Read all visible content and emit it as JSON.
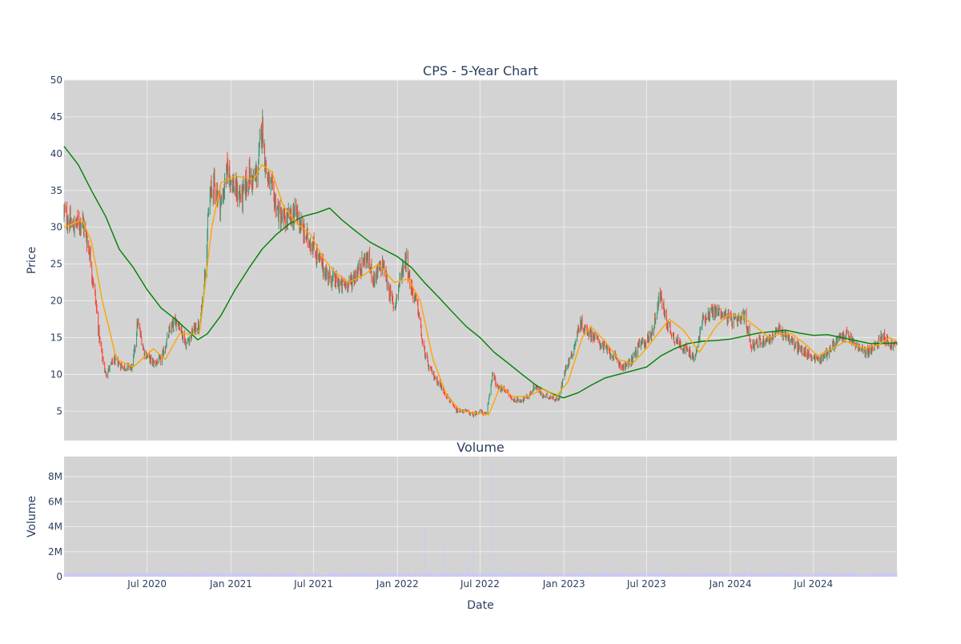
{
  "title": "CPS - 5-Year Chart",
  "volume_title": "Volume",
  "xlabel": "Date",
  "price_ylabel": "Price",
  "volume_ylabel": "Volume",
  "colors": {
    "plot_bg": "#d3d3d3",
    "grid": "#ececec",
    "up": "#3d9970",
    "down": "#ff4136",
    "ma_short": "#ffa500",
    "ma_long": "#008000",
    "volume": "#c8c8ff",
    "text": "#2a3f5f"
  },
  "chart_data": [
    {
      "type": "candlestick",
      "name": "price",
      "x_range": [
        "2020-01-01",
        "2024-12-31"
      ],
      "ylim": [
        1,
        50
      ],
      "y_ticks": [
        5,
        10,
        15,
        20,
        25,
        30,
        35,
        40,
        45,
        50
      ],
      "x_ticks": [
        "2020-07-01",
        "2021-01-01",
        "2021-07-01",
        "2022-01-01",
        "2022-07-01",
        "2023-01-01",
        "2023-07-01",
        "2024-01-01",
        "2024-07-01"
      ],
      "x_tick_labels": [
        "Jul 2020",
        "Jan 2021",
        "Jul 2021",
        "Jan 2022",
        "Jul 2022",
        "Jan 2023",
        "Jul 2023",
        "Jan 2024",
        "Jul 2024"
      ],
      "grid": true,
      "close_series": [
        [
          "2020-01-01",
          32
        ],
        [
          "2020-01-20",
          30
        ],
        [
          "2020-02-10",
          31
        ],
        [
          "2020-02-25",
          27
        ],
        [
          "2020-03-10",
          20
        ],
        [
          "2020-03-20",
          14
        ],
        [
          "2020-04-01",
          10
        ],
        [
          "2020-04-20",
          12
        ],
        [
          "2020-05-10",
          11
        ],
        [
          "2020-05-30",
          11
        ],
        [
          "2020-06-10",
          17
        ],
        [
          "2020-06-25",
          13
        ],
        [
          "2020-07-15",
          11.5
        ],
        [
          "2020-08-01",
          12
        ],
        [
          "2020-08-20",
          16
        ],
        [
          "2020-09-05",
          17.5
        ],
        [
          "2020-09-25",
          14
        ],
        [
          "2020-10-10",
          16
        ],
        [
          "2020-10-25",
          16.5
        ],
        [
          "2020-11-05",
          24
        ],
        [
          "2020-11-15",
          34
        ],
        [
          "2020-11-25",
          36
        ],
        [
          "2020-12-10",
          33
        ],
        [
          "2020-12-25",
          38
        ],
        [
          "2021-01-10",
          35
        ],
        [
          "2021-01-25",
          34
        ],
        [
          "2021-02-10",
          37
        ],
        [
          "2021-02-20",
          36
        ],
        [
          "2021-03-01",
          38
        ],
        [
          "2021-03-10",
          44
        ],
        [
          "2021-03-20",
          37
        ],
        [
          "2021-04-05",
          34
        ],
        [
          "2021-04-20",
          31
        ],
        [
          "2021-05-05",
          31
        ],
        [
          "2021-05-25",
          32
        ],
        [
          "2021-06-10",
          29
        ],
        [
          "2021-06-25",
          28
        ],
        [
          "2021-07-10",
          26
        ],
        [
          "2021-07-25",
          24
        ],
        [
          "2021-08-10",
          23
        ],
        [
          "2021-08-30",
          22
        ],
        [
          "2021-09-20",
          22.5
        ],
        [
          "2021-10-10",
          24.5
        ],
        [
          "2021-10-25",
          26
        ],
        [
          "2021-11-10",
          23
        ],
        [
          "2021-11-30",
          25
        ],
        [
          "2021-12-15",
          21
        ],
        [
          "2021-12-25",
          19
        ],
        [
          "2022-01-10",
          24
        ],
        [
          "2022-01-20",
          26
        ],
        [
          "2022-01-30",
          22
        ],
        [
          "2022-02-15",
          19
        ],
        [
          "2022-02-25",
          14
        ],
        [
          "2022-03-10",
          11
        ],
        [
          "2022-03-25",
          9.5
        ],
        [
          "2022-04-10",
          8
        ],
        [
          "2022-04-25",
          6.5
        ],
        [
          "2022-05-10",
          5
        ],
        [
          "2022-05-30",
          5
        ],
        [
          "2022-06-15",
          4.5
        ],
        [
          "2022-06-30",
          5
        ],
        [
          "2022-07-15",
          4.5
        ],
        [
          "2022-07-28",
          10
        ],
        [
          "2022-08-10",
          8
        ],
        [
          "2022-08-25",
          8
        ],
        [
          "2022-09-10",
          6.5
        ],
        [
          "2022-09-30",
          6.5
        ],
        [
          "2022-10-15",
          7
        ],
        [
          "2022-10-30",
          8.5
        ],
        [
          "2022-11-15",
          7
        ],
        [
          "2022-12-01",
          7
        ],
        [
          "2022-12-20",
          6.5
        ],
        [
          "2023-01-05",
          11
        ],
        [
          "2023-01-20",
          13
        ],
        [
          "2023-02-05",
          17
        ],
        [
          "2023-02-20",
          16
        ],
        [
          "2023-03-10",
          15
        ],
        [
          "2023-03-25",
          14
        ],
        [
          "2023-04-10",
          13
        ],
        [
          "2023-04-25",
          12
        ],
        [
          "2023-05-10",
          11
        ],
        [
          "2023-05-25",
          11.5
        ],
        [
          "2023-06-15",
          14
        ],
        [
          "2023-07-01",
          14.5
        ],
        [
          "2023-07-15",
          16
        ],
        [
          "2023-07-30",
          21
        ],
        [
          "2023-08-15",
          17
        ],
        [
          "2023-08-30",
          15
        ],
        [
          "2023-09-15",
          14
        ],
        [
          "2023-10-01",
          13
        ],
        [
          "2023-10-15",
          12
        ],
        [
          "2023-11-01",
          17.5
        ],
        [
          "2023-11-20",
          18.5
        ],
        [
          "2023-12-10",
          18.5
        ],
        [
          "2023-12-31",
          17.5
        ],
        [
          "2024-01-15",
          17
        ],
        [
          "2024-02-01",
          18
        ],
        [
          "2024-02-15",
          14
        ],
        [
          "2024-03-10",
          14.5
        ],
        [
          "2024-03-30",
          15
        ],
        [
          "2024-04-15",
          16
        ],
        [
          "2024-05-01",
          15.5
        ],
        [
          "2024-05-20",
          14
        ],
        [
          "2024-06-10",
          13
        ],
        [
          "2024-06-25",
          12.5
        ],
        [
          "2024-07-15",
          12
        ],
        [
          "2024-08-01",
          13
        ],
        [
          "2024-08-20",
          14.5
        ],
        [
          "2024-09-10",
          15.5
        ],
        [
          "2024-09-30",
          14
        ],
        [
          "2024-10-20",
          13
        ],
        [
          "2024-11-10",
          13.5
        ],
        [
          "2024-11-30",
          15.5
        ],
        [
          "2024-12-15",
          14
        ],
        [
          "2024-12-31",
          14
        ]
      ],
      "ma_short": [
        [
          "2020-01-01",
          30
        ],
        [
          "2020-02-10",
          31
        ],
        [
          "2020-03-01",
          28
        ],
        [
          "2020-03-25",
          20
        ],
        [
          "2020-04-25",
          12
        ],
        [
          "2020-06-01",
          11
        ],
        [
          "2020-07-15",
          13.5
        ],
        [
          "2020-08-10",
          12
        ],
        [
          "2020-09-10",
          15.5
        ],
        [
          "2020-10-10",
          15.5
        ],
        [
          "2020-10-25",
          16
        ],
        [
          "2020-11-20",
          30
        ],
        [
          "2020-12-10",
          36
        ],
        [
          "2021-01-10",
          37
        ],
        [
          "2021-02-20",
          36.5
        ],
        [
          "2021-03-10",
          38.5
        ],
        [
          "2021-04-01",
          37.5
        ],
        [
          "2021-04-25",
          33
        ],
        [
          "2021-05-25",
          30.5
        ],
        [
          "2021-06-25",
          29
        ],
        [
          "2021-07-20",
          26
        ],
        [
          "2021-08-15",
          24
        ],
        [
          "2021-09-15",
          22.5
        ],
        [
          "2021-10-20",
          23.5
        ],
        [
          "2021-11-20",
          25
        ],
        [
          "2021-12-25",
          22.5
        ],
        [
          "2022-01-25",
          23
        ],
        [
          "2022-02-20",
          20
        ],
        [
          "2022-03-20",
          12
        ],
        [
          "2022-04-20",
          7
        ],
        [
          "2022-05-20",
          5
        ],
        [
          "2022-06-20",
          4.8
        ],
        [
          "2022-07-20",
          4.5
        ],
        [
          "2022-08-15",
          8.5
        ],
        [
          "2022-09-10",
          7
        ],
        [
          "2022-10-15",
          7
        ],
        [
          "2022-11-15",
          8
        ],
        [
          "2022-12-15",
          7
        ],
        [
          "2023-01-10",
          9
        ],
        [
          "2023-02-10",
          15
        ],
        [
          "2023-03-01",
          16.5
        ],
        [
          "2023-04-01",
          14.5
        ],
        [
          "2023-05-01",
          12
        ],
        [
          "2023-06-01",
          11.5
        ],
        [
          "2023-07-01",
          13.5
        ],
        [
          "2023-08-01",
          16
        ],
        [
          "2023-08-20",
          17.5
        ],
        [
          "2023-09-20",
          16
        ],
        [
          "2023-10-25",
          13
        ],
        [
          "2023-11-30",
          16.5
        ],
        [
          "2023-12-25",
          18
        ],
        [
          "2024-01-25",
          18
        ],
        [
          "2024-02-25",
          16.5
        ],
        [
          "2024-03-25",
          15
        ],
        [
          "2024-04-20",
          15.5
        ],
        [
          "2024-05-15",
          15.5
        ],
        [
          "2024-06-15",
          14
        ],
        [
          "2024-07-10",
          12.5
        ],
        [
          "2024-08-10",
          13.5
        ],
        [
          "2024-09-10",
          14.5
        ],
        [
          "2024-10-20",
          13.5
        ],
        [
          "2024-11-20",
          14
        ],
        [
          "2024-12-15",
          15
        ],
        [
          "2024-12-31",
          14.5
        ]
      ],
      "ma_long": [
        [
          "2020-01-01",
          41
        ],
        [
          "2020-02-01",
          38.5
        ],
        [
          "2020-03-01",
          35
        ],
        [
          "2020-04-01",
          31.5
        ],
        [
          "2020-05-01",
          27
        ],
        [
          "2020-06-01",
          24.5
        ],
        [
          "2020-07-01",
          21.5
        ],
        [
          "2020-08-01",
          19
        ],
        [
          "2020-09-01",
          17.5
        ],
        [
          "2020-10-01",
          15.8
        ],
        [
          "2020-10-20",
          14.7
        ],
        [
          "2020-11-10",
          15.5
        ],
        [
          "2020-12-10",
          18
        ],
        [
          "2021-01-10",
          21.5
        ],
        [
          "2021-02-10",
          24.5
        ],
        [
          "2021-03-10",
          27
        ],
        [
          "2021-04-10",
          29
        ],
        [
          "2021-05-10",
          30.5
        ],
        [
          "2021-06-10",
          31.5
        ],
        [
          "2021-07-10",
          32
        ],
        [
          "2021-08-05",
          32.6
        ],
        [
          "2021-09-01",
          31
        ],
        [
          "2021-10-01",
          29.5
        ],
        [
          "2021-11-01",
          28
        ],
        [
          "2021-12-01",
          27
        ],
        [
          "2022-01-01",
          26
        ],
        [
          "2022-02-01",
          24.5
        ],
        [
          "2022-03-01",
          22.5
        ],
        [
          "2022-04-01",
          20.5
        ],
        [
          "2022-05-01",
          18.5
        ],
        [
          "2022-06-01",
          16.5
        ],
        [
          "2022-07-01",
          15
        ],
        [
          "2022-08-01",
          13
        ],
        [
          "2022-09-01",
          11.5
        ],
        [
          "2022-10-01",
          10
        ],
        [
          "2022-11-01",
          8.5
        ],
        [
          "2022-12-01",
          7.5
        ],
        [
          "2022-12-31",
          6.8
        ],
        [
          "2023-02-01",
          7.5
        ],
        [
          "2023-03-01",
          8.5
        ],
        [
          "2023-04-01",
          9.5
        ],
        [
          "2023-05-01",
          10
        ],
        [
          "2023-06-01",
          10.5
        ],
        [
          "2023-07-01",
          11
        ],
        [
          "2023-08-01",
          12.5
        ],
        [
          "2023-09-01",
          13.5
        ],
        [
          "2023-10-01",
          14.2
        ],
        [
          "2023-11-01",
          14.5
        ],
        [
          "2023-12-01",
          14.6
        ],
        [
          "2024-01-01",
          14.8
        ],
        [
          "2024-02-01",
          15.2
        ],
        [
          "2024-03-01",
          15.6
        ],
        [
          "2024-04-01",
          15.8
        ],
        [
          "2024-05-01",
          16
        ],
        [
          "2024-06-01",
          15.6
        ],
        [
          "2024-07-01",
          15.3
        ],
        [
          "2024-08-01",
          15.4
        ],
        [
          "2024-09-01",
          15
        ],
        [
          "2024-10-01",
          14.6
        ],
        [
          "2024-11-01",
          14.2
        ],
        [
          "2024-12-01",
          14.2
        ],
        [
          "2024-12-31",
          14.3
        ]
      ]
    },
    {
      "type": "bar",
      "name": "volume",
      "x_range": [
        "2020-01-01",
        "2024-12-31"
      ],
      "ylim": [
        0,
        9600000
      ],
      "y_ticks": [
        0,
        2000000,
        4000000,
        6000000,
        8000000
      ],
      "y_tick_labels": [
        "0",
        "2M",
        "4M",
        "6M",
        "8M"
      ],
      "baseline": 300000,
      "spikes": [
        [
          "2020-02-20",
          500000
        ],
        [
          "2020-03-20",
          600000
        ],
        [
          "2020-06-15",
          450000
        ],
        [
          "2020-10-25",
          1100000
        ],
        [
          "2020-11-10",
          600000
        ],
        [
          "2022-02-20",
          900000
        ],
        [
          "2022-03-01",
          3900000
        ],
        [
          "2022-03-10",
          600000
        ],
        [
          "2022-04-15",
          3100000
        ],
        [
          "2022-05-15",
          1500000
        ],
        [
          "2022-06-01",
          1900000
        ],
        [
          "2022-06-15",
          2500000
        ],
        [
          "2022-07-28",
          9000000
        ],
        [
          "2022-08-05",
          1800000
        ],
        [
          "2023-07-25",
          1600000
        ],
        [
          "2023-08-20",
          600000
        ],
        [
          "2023-10-10",
          900000
        ],
        [
          "2023-11-01",
          1000000
        ],
        [
          "2023-12-10",
          1200000
        ],
        [
          "2024-02-15",
          1100000
        ],
        [
          "2024-11-20",
          700000
        ]
      ]
    }
  ]
}
